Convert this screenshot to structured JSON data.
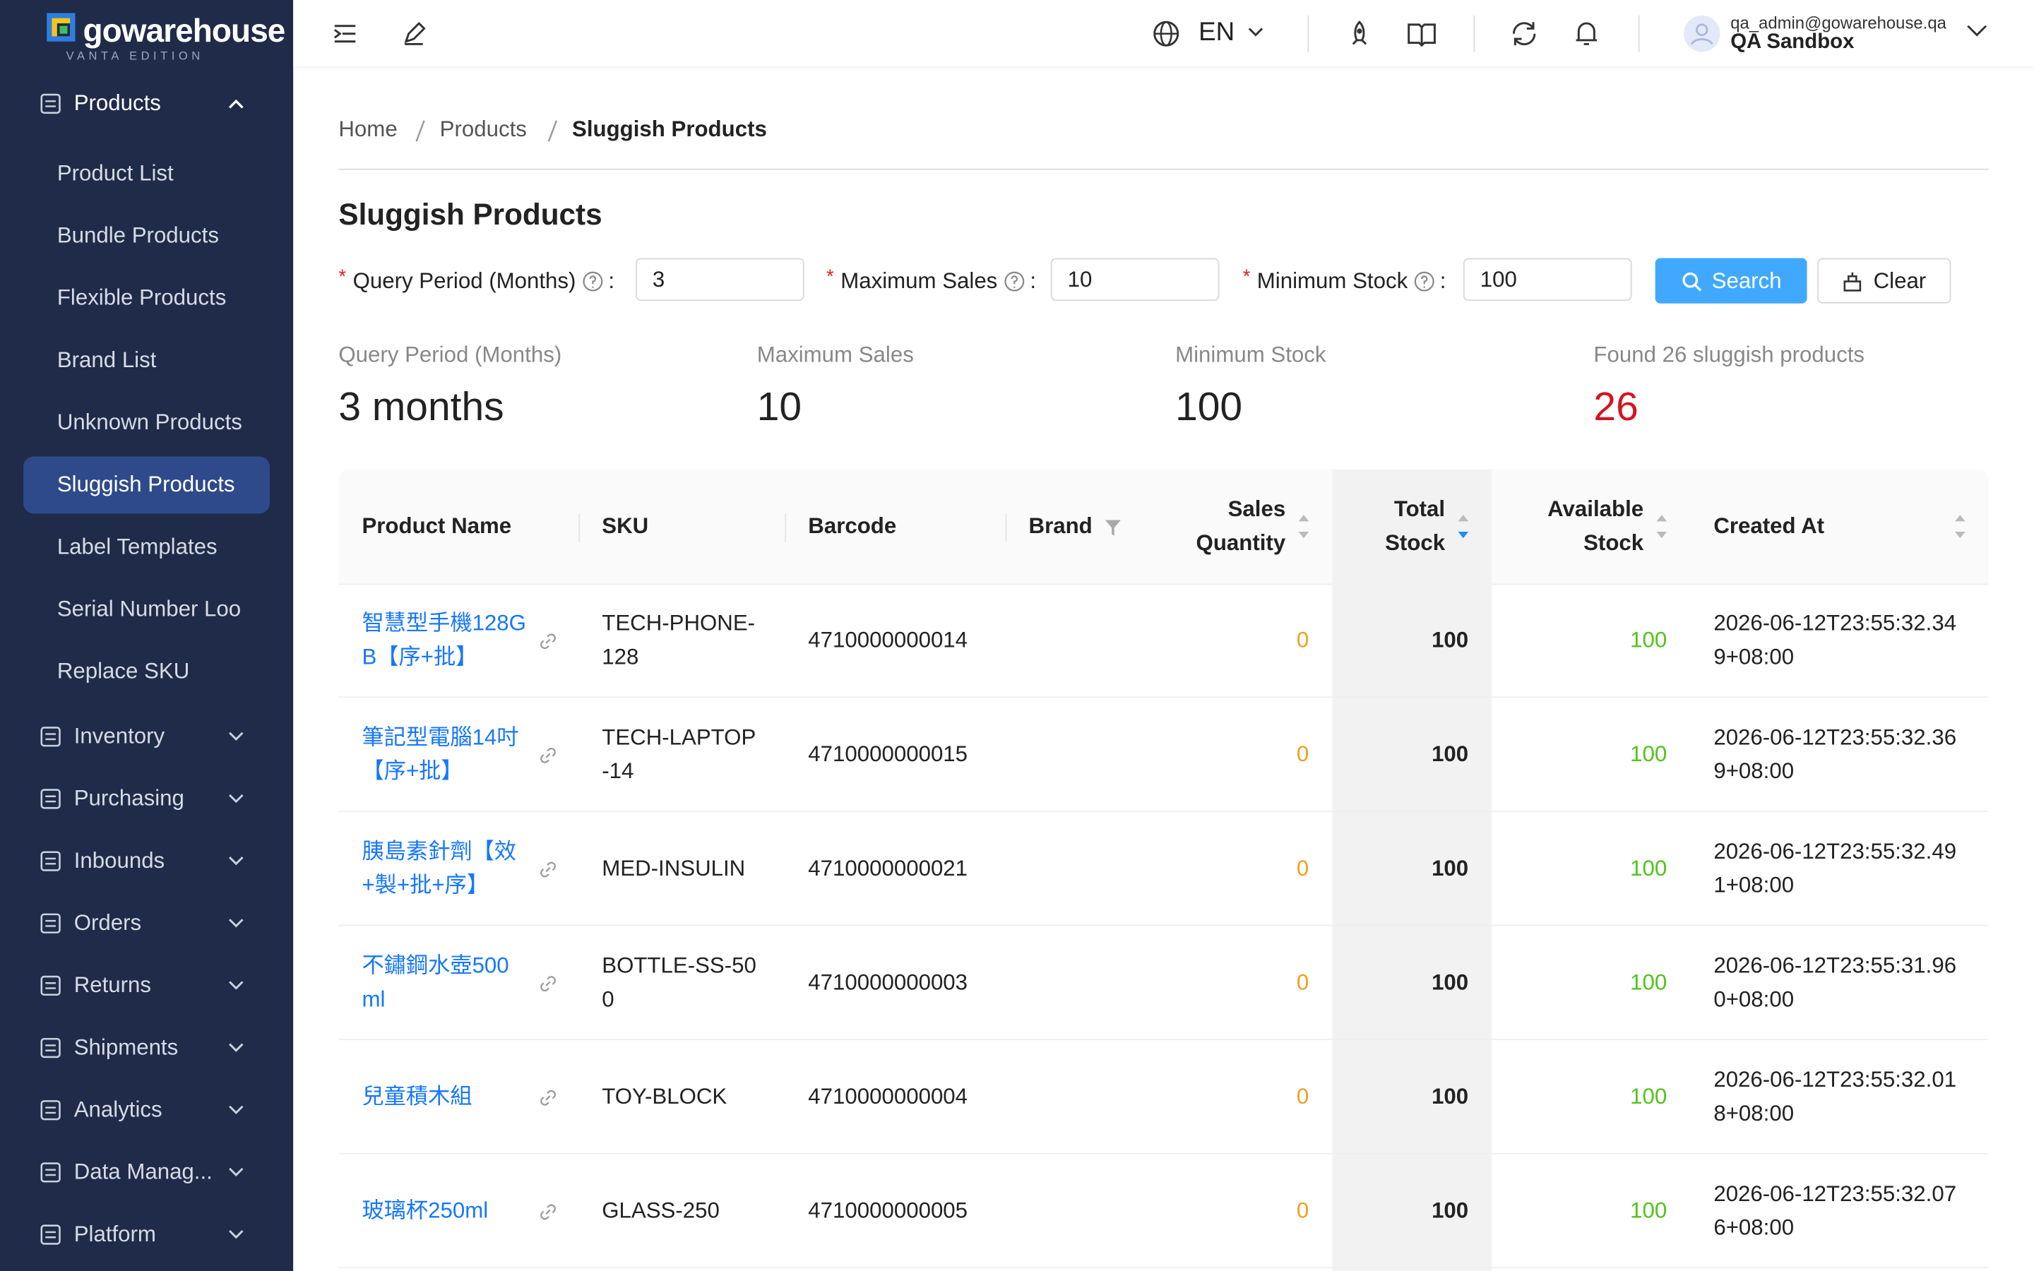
{
  "sidebar": {
    "logo": "gowarehouse",
    "edition": "VANTA EDITION",
    "groups": [
      {
        "label": "Products",
        "children": [
          "Product List",
          "Bundle Products",
          "Flexible Products",
          "Brand List",
          "Unknown Products",
          "Sluggish Products",
          "Label Templates",
          "Serial Number Loo",
          "Replace SKU"
        ]
      },
      {
        "label": "Inventory"
      },
      {
        "label": "Purchasing"
      },
      {
        "label": "Inbounds"
      },
      {
        "label": "Orders"
      },
      {
        "label": "Returns"
      },
      {
        "label": "Shipments"
      },
      {
        "label": "Analytics"
      },
      {
        "label": "Data Manag..."
      },
      {
        "label": "Platform"
      }
    ]
  },
  "topbar": {
    "language": "EN",
    "user_email": "qa_admin@gowarehouse.qa",
    "tenant": "QA Sandbox"
  },
  "breadcrumb": [
    "Home",
    "Products",
    "Sluggish Products"
  ],
  "title": "Sluggish Products",
  "form": {
    "required_mark": "*",
    "label_separator": ":",
    "fields": [
      {
        "label": "Query Period (Months)",
        "value": "3"
      },
      {
        "label": "Maximum Sales",
        "value": "10"
      },
      {
        "label": "Minimum Stock",
        "value": "100"
      }
    ],
    "buttons": [
      "Search",
      "Clear"
    ]
  },
  "stats": [
    {
      "label": "Query Period (Months)",
      "value": "3 months"
    },
    {
      "label": "Maximum Sales",
      "value": "10"
    },
    {
      "label": "Minimum Stock",
      "value": "100"
    },
    {
      "label": "Found 26 sluggish products",
      "value": "26"
    }
  ],
  "table": {
    "columns": [
      "Product Name",
      "SKU",
      "Barcode",
      "Brand",
      "Sales Quantity",
      "Total Stock",
      "Available Stock",
      "Created At"
    ],
    "rows": [
      [
        "智慧型手機128GB【序+批】",
        "TECH-PHONE-128",
        "4710000000014",
        null,
        0,
        100,
        100,
        "2026-06-12T23:55:32.349+08:00"
      ],
      [
        "筆記型電腦14吋【序+批】",
        "TECH-LAPTOP-14",
        "4710000000015",
        null,
        0,
        100,
        100,
        "2026-06-12T23:55:32.369+08:00"
      ],
      [
        "胰島素針劑【效+製+批+序】",
        "MED-INSULIN",
        "4710000000021",
        null,
        0,
        100,
        100,
        "2026-06-12T23:55:32.491+08:00"
      ],
      [
        "不鏽鋼水壺500ml",
        "BOTTLE-SS-500",
        "4710000000003",
        null,
        0,
        100,
        100,
        "2026-06-12T23:55:31.960+08:00"
      ],
      [
        "兒童積木組",
        "TOY-BLOCK",
        "4710000000004",
        null,
        0,
        100,
        100,
        "2026-06-12T23:55:32.018+08:00"
      ],
      [
        "玻璃杯250ml",
        "GLASS-250",
        "4710000000005",
        null,
        0,
        100,
        100,
        "2026-06-12T23:55:32.076+08:00"
      ]
    ]
  }
}
